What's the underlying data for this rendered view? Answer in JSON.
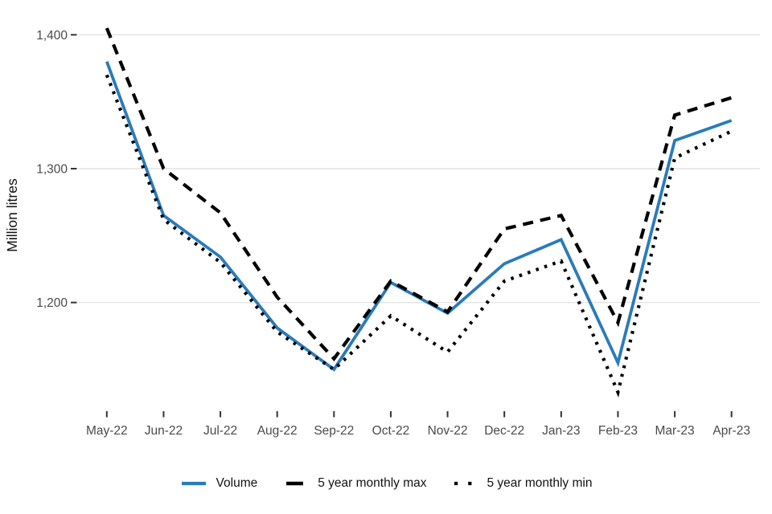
{
  "chart_data": {
    "type": "line",
    "title": "",
    "xlabel": "",
    "ylabel": "Million litres",
    "categories": [
      "May-22",
      "Jun-22",
      "Jul-22",
      "Aug-22",
      "Sep-22",
      "Oct-22",
      "Nov-22",
      "Dec-22",
      "Jan-23",
      "Feb-23",
      "Mar-23",
      "Apr-23"
    ],
    "series": [
      {
        "key": "volume",
        "name": "Volume",
        "style": "solid",
        "color": "#2b7bb9",
        "values": [
          1380,
          1265,
          1234,
          1181,
          1150,
          1215,
          1192,
          1229,
          1247,
          1155,
          1321,
          1336
        ]
      },
      {
        "key": "max",
        "name": "5 year monthly max",
        "style": "dashed",
        "color": "#000000",
        "values": [
          1405,
          1300,
          1267,
          1204,
          1158,
          1216,
          1193,
          1255,
          1265,
          1185,
          1340,
          1353
        ]
      },
      {
        "key": "min",
        "name": "5 year monthly min",
        "style": "dotted",
        "color": "#000000",
        "values": [
          1370,
          1262,
          1230,
          1178,
          1150,
          1190,
          1163,
          1216,
          1231,
          1133,
          1308,
          1328
        ]
      }
    ],
    "ylim": [
      1120,
      1426
    ],
    "yticks": [
      1200,
      1300,
      1400
    ],
    "ytick_labels": [
      "1,200",
      "1,300",
      "1,400"
    ],
    "grid": "horizontal-major-only",
    "legend_position": "bottom"
  }
}
